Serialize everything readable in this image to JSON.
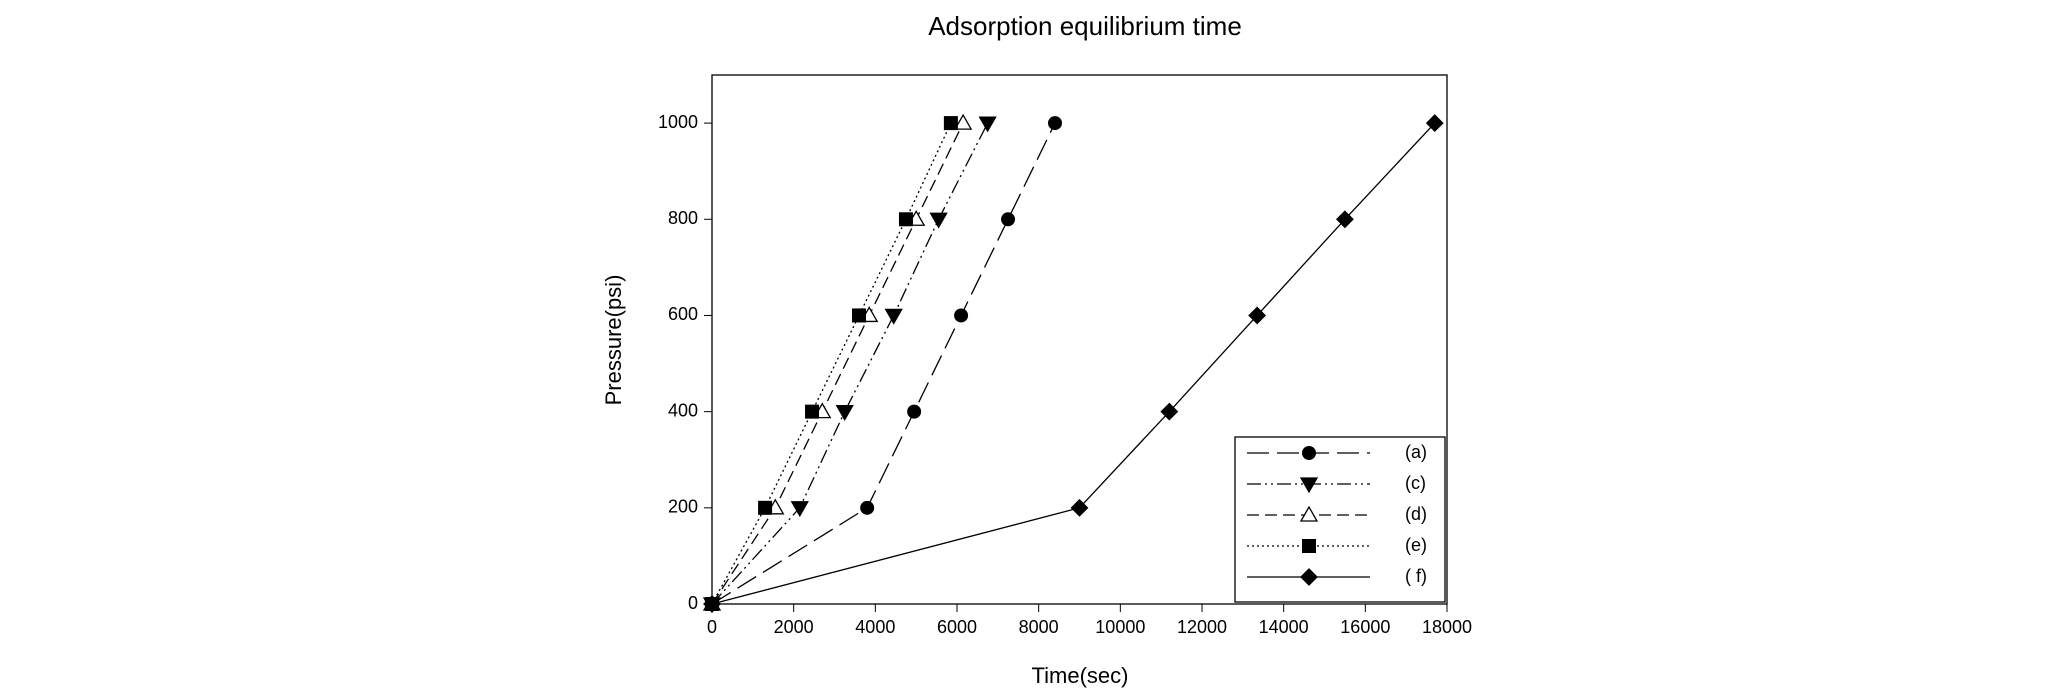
{
  "chart_data": {
    "type": "line",
    "title": "Adsorption equilibrium time",
    "x_label": "Time(sec)",
    "y_label": "Pressure(psi)",
    "xlim": [
      0,
      18000
    ],
    "ylim": [
      0,
      1100
    ],
    "xticks": [
      0,
      2000,
      4000,
      6000,
      8000,
      10000,
      12000,
      14000,
      16000,
      18000
    ],
    "yticks": [
      0,
      200,
      400,
      600,
      800,
      1000
    ],
    "legend": "lower right",
    "series": [
      {
        "name": "(a)",
        "color": "#000000",
        "marker": "circle",
        "dash": "long-dash",
        "x": [
          0,
          3800,
          4950,
          6100,
          7250,
          8400
        ],
        "values": [
          0,
          200,
          400,
          600,
          800,
          1000
        ]
      },
      {
        "name": "(c)",
        "color": "#000000",
        "marker": "triangle-down",
        "dash": "dash-dot-dot",
        "x": [
          0,
          2150,
          3250,
          4450,
          5550,
          6750
        ],
        "values": [
          0,
          200,
          400,
          600,
          800,
          1000
        ]
      },
      {
        "name": "(d)",
        "color": "#000000",
        "marker": "triangle-up-open",
        "dash": "dash",
        "x": [
          0,
          1550,
          2700,
          3850,
          5000,
          6150
        ],
        "values": [
          0,
          200,
          400,
          600,
          800,
          1000
        ]
      },
      {
        "name": "(e)",
        "color": "#000000",
        "marker": "square",
        "dash": "dot",
        "x": [
          0,
          1300,
          2450,
          3600,
          4750,
          5850
        ],
        "values": [
          0,
          200,
          400,
          600,
          800,
          1000
        ]
      },
      {
        "name": "( f)",
        "color": "#000000",
        "marker": "diamond",
        "dash": "solid",
        "x": [
          0,
          9000,
          11200,
          13350,
          15500,
          17700
        ],
        "values": [
          0,
          200,
          400,
          600,
          800,
          1000
        ]
      }
    ]
  }
}
